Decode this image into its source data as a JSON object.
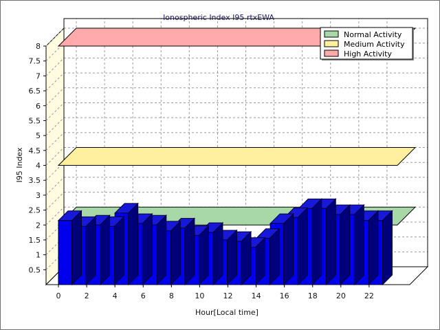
{
  "chart_data": {
    "type": "bar",
    "title": "Ionospheric Index I95 rtxEWA",
    "xlabel": "Hour[Local time]",
    "ylabel": "I95 Index",
    "x_ticks": [
      0,
      2,
      4,
      6,
      8,
      10,
      12,
      14,
      16,
      18,
      20,
      22
    ],
    "y_ticks": [
      "0.5",
      "1",
      "1.5",
      "2",
      "2.5",
      "3",
      "3.5",
      "4",
      "4.5",
      "5",
      "5.5",
      "6",
      "6.5",
      "7",
      "7.5",
      "8"
    ],
    "ylim": [
      0,
      8
    ],
    "xlim": [
      0,
      24
    ],
    "grid": true,
    "legend_position": "top-right",
    "hours": [
      0,
      1,
      2,
      3,
      4,
      5,
      6,
      7,
      8,
      9,
      10,
      11,
      12,
      13,
      14,
      15,
      16,
      17,
      18,
      19,
      20,
      21,
      22
    ],
    "values": [
      2.15,
      1.95,
      2.0,
      1.95,
      2.4,
      2.05,
      2.0,
      1.8,
      1.9,
      1.65,
      1.75,
      1.5,
      1.45,
      1.25,
      1.55,
      2.05,
      2.25,
      2.55,
      2.55,
      2.35,
      2.35,
      2.15,
      2.15
    ],
    "bar_color": "#0000ee",
    "bands": [
      {
        "name": "Normal Activity",
        "level": 2.0,
        "color": "#a8d8a8"
      },
      {
        "name": "Medium Activity",
        "level": 4.0,
        "color": "#fff0a0"
      },
      {
        "name": "High Activity",
        "level": 8.0,
        "color": "#ffaaaa"
      }
    ]
  }
}
